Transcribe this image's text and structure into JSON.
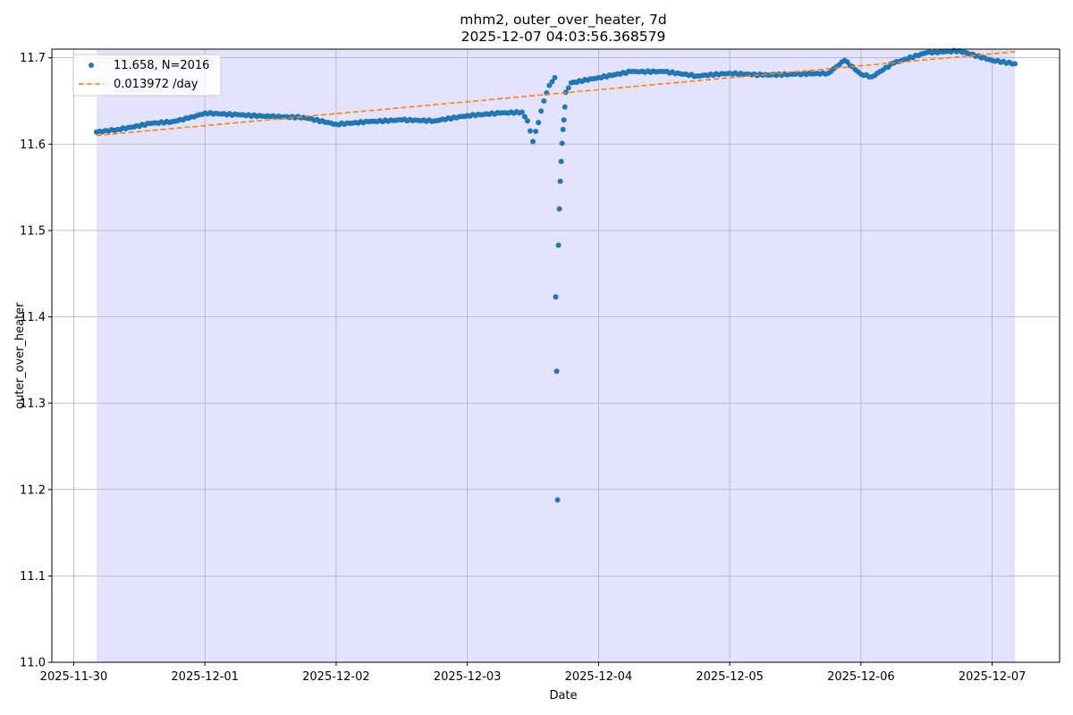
{
  "chart_data": {
    "type": "scatter",
    "title": "mhm2, outer_over_heater, 7d",
    "subtitle": "2025-12-07 04:03:56.368579",
    "xlabel": "Date",
    "ylabel": "outer_over_heater",
    "x_range": [
      "2025-11-29T20:00",
      "2025-12-07T12:20"
    ],
    "x_ticks": [
      "2025-11-30",
      "2025-12-01",
      "2025-12-02",
      "2025-12-03",
      "2025-12-04",
      "2025-12-05",
      "2025-12-06",
      "2025-12-07"
    ],
    "ylim": [
      11.0,
      11.71
    ],
    "y_ticks": [
      11.0,
      11.1,
      11.2,
      11.3,
      11.4,
      11.5,
      11.6,
      11.7
    ],
    "grid": true,
    "legend_position": "top-left",
    "shaded_span": {
      "start": "2025-11-30T04:10",
      "end": "2025-12-07T04:10",
      "color": "#e3e3ff"
    },
    "series": [
      {
        "name": "11.658, N=2016",
        "kind": "scatter",
        "color": "#1f77b4",
        "points": [
          [
            "2025-11-30T04:10",
            11.614
          ],
          [
            "2025-11-30T08:00",
            11.617
          ],
          [
            "2025-11-30T11:00",
            11.62
          ],
          [
            "2025-11-30T14:00",
            11.624
          ],
          [
            "2025-11-30T18:00",
            11.626
          ],
          [
            "2025-11-30T21:00",
            11.63
          ],
          [
            "2025-12-01T00:00",
            11.636
          ],
          [
            "2025-12-01T06:00",
            11.634
          ],
          [
            "2025-12-01T12:00",
            11.632
          ],
          [
            "2025-12-01T18:00",
            11.631
          ],
          [
            "2025-12-02T00:00",
            11.623
          ],
          [
            "2025-12-02T06:00",
            11.626
          ],
          [
            "2025-12-02T12:00",
            11.628
          ],
          [
            "2025-12-02T18:00",
            11.627
          ],
          [
            "2025-12-03T00:00",
            11.633
          ],
          [
            "2025-12-03T06:00",
            11.636
          ],
          [
            "2025-12-03T10:00",
            11.637
          ],
          [
            "2025-12-03T11:00",
            11.627
          ],
          [
            "2025-12-03T12:00",
            11.603
          ],
          [
            "2025-12-03T13:00",
            11.625
          ],
          [
            "2025-12-03T14:00",
            11.65
          ],
          [
            "2025-12-03T15:00",
            11.668
          ],
          [
            "2025-12-03T16:00",
            11.677
          ],
          [
            "2025-12-03T16:10",
            11.423
          ],
          [
            "2025-12-03T16:20",
            11.337
          ],
          [
            "2025-12-03T16:30",
            11.188
          ],
          [
            "2025-12-03T16:40",
            11.483
          ],
          [
            "2025-12-03T16:50",
            11.525
          ],
          [
            "2025-12-03T17:00",
            11.557
          ],
          [
            "2025-12-03T17:10",
            11.58
          ],
          [
            "2025-12-03T17:20",
            11.601
          ],
          [
            "2025-12-03T17:30",
            11.617
          ],
          [
            "2025-12-03T17:40",
            11.628
          ],
          [
            "2025-12-03T17:50",
            11.643
          ],
          [
            "2025-12-03T18:00",
            11.66
          ],
          [
            "2025-12-03T19:00",
            11.671
          ],
          [
            "2025-12-04T00:00",
            11.677
          ],
          [
            "2025-12-04T06:00",
            11.684
          ],
          [
            "2025-12-04T12:00",
            11.684
          ],
          [
            "2025-12-04T18:00",
            11.679
          ],
          [
            "2025-12-05T00:00",
            11.682
          ],
          [
            "2025-12-05T06:00",
            11.68
          ],
          [
            "2025-12-05T12:00",
            11.681
          ],
          [
            "2025-12-05T18:00",
            11.682
          ],
          [
            "2025-12-05T21:00",
            11.697
          ],
          [
            "2025-12-06T00:00",
            11.681
          ],
          [
            "2025-12-06T02:00",
            11.678
          ],
          [
            "2025-12-06T06:00",
            11.694
          ],
          [
            "2025-12-06T12:00",
            11.706
          ],
          [
            "2025-12-06T18:00",
            11.708
          ],
          [
            "2025-12-07T00:00",
            11.697
          ],
          [
            "2025-12-07T04:10",
            11.693
          ]
        ]
      },
      {
        "name": "0.013972 /day",
        "kind": "line",
        "style": "dashed",
        "color": "#ff7f0e",
        "points": [
          [
            "2025-11-30T04:10",
            11.61
          ],
          [
            "2025-12-07T04:10",
            11.707
          ]
        ]
      }
    ]
  }
}
